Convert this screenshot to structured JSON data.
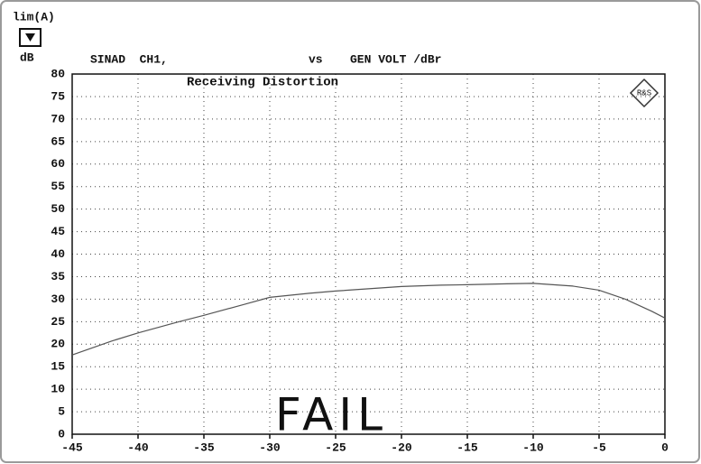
{
  "chart_data": {
    "type": "line",
    "title": "Receiving Distortion",
    "limit_label": "lim(A)",
    "y_label": "dB",
    "trace_label": "SINAD  CH1,",
    "versus": "vs",
    "x_label": "GEN VOLT /dBr",
    "annotation": "FAIL",
    "x": [
      -45,
      -42,
      -40,
      -37,
      -35,
      -32,
      -30,
      -27,
      -25,
      -22,
      -20,
      -17,
      -15,
      -12,
      -10,
      -7,
      -5,
      -3,
      -1,
      0
    ],
    "values": [
      17.6,
      20.7,
      22.5,
      24.9,
      26.4,
      28.8,
      30.4,
      31.3,
      31.8,
      32.4,
      32.8,
      33.1,
      33.2,
      33.4,
      33.5,
      32.9,
      32.0,
      30.0,
      27.3,
      25.8
    ],
    "color": "#555555",
    "xlim": [
      -45,
      0
    ],
    "xticks": [
      -45,
      -40,
      -35,
      -30,
      -25,
      -20,
      -15,
      -10,
      -5,
      0
    ],
    "ylim": [
      0,
      80
    ],
    "yticks": [
      0,
      5,
      10,
      15,
      20,
      25,
      30,
      35,
      40,
      45,
      50,
      55,
      60,
      65,
      70,
      75,
      80
    ],
    "grid": true
  }
}
